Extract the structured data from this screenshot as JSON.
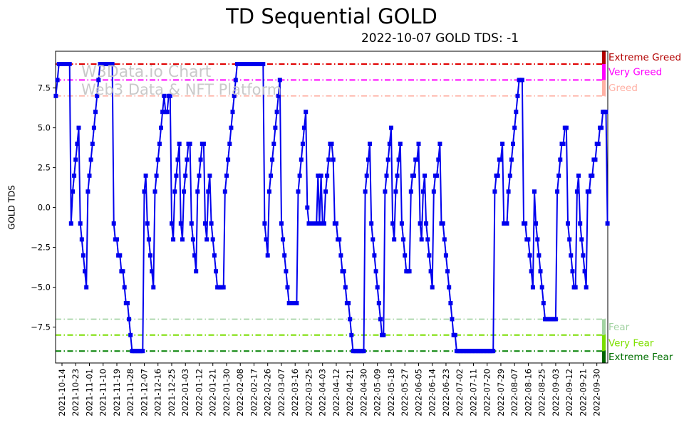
{
  "chart_data": {
    "type": "line",
    "title": "TD Sequential GOLD",
    "subtitle": "2022-10-07 GOLD TDS: -1",
    "ylabel": "GOLD TDS",
    "series_name": "GOLD TDS",
    "line_color": "#0000ee",
    "marker": "square",
    "grid": false,
    "ylim": [
      -9.8,
      9.8
    ],
    "start_date": "2021-10-10",
    "watermark": [
      "W3Data.io Chart",
      "Web3 Data & NFT Platform"
    ],
    "y_tick_labels": [
      "7.5",
      "5.0",
      "2.5",
      "0.0",
      "−2.5",
      "−5.0",
      "−7.5"
    ],
    "y_tick_values": [
      7.5,
      5.0,
      2.5,
      0.0,
      -2.5,
      -5.0,
      -7.5
    ],
    "x_tick_labels": [
      "2021-10-14",
      "2021-10-23",
      "2021-11-01",
      "2021-11-10",
      "2021-11-19",
      "2021-11-28",
      "2021-12-07",
      "2021-12-16",
      "2021-12-25",
      "2022-01-03",
      "2022-01-12",
      "2022-01-21",
      "2022-01-30",
      "2022-02-08",
      "2022-02-17",
      "2022-02-26",
      "2022-03-07",
      "2022-03-16",
      "2022-03-25",
      "2022-04-03",
      "2022-04-12",
      "2022-04-21",
      "2022-04-30",
      "2022-05-09",
      "2022-05-18",
      "2022-05-27",
      "2022-06-05",
      "2022-06-14",
      "2022-06-23",
      "2022-07-02",
      "2022-07-11",
      "2022-07-20",
      "2022-07-29",
      "2022-08-07",
      "2022-08-16",
      "2022-08-25",
      "2022-09-03",
      "2022-09-12",
      "2022-09-21",
      "2022-09-30"
    ],
    "x_tick_first_index": 4,
    "x_tick_step_days": 9,
    "levels": [
      {
        "label": "Extreme Greed",
        "value": 9,
        "line_color": "#e00000",
        "text_color": "#b30000",
        "bar_color": "#b30000"
      },
      {
        "label": "Very Greed",
        "value": 8,
        "line_color": "#ff00ff",
        "text_color": "#ff00ff",
        "bar_color": "#ff00ff"
      },
      {
        "label": "Greed",
        "value": 7,
        "line_color": "#ffb0a4",
        "text_color": "#ffb0a4",
        "bar_color": "#ffb0a4"
      },
      {
        "label": "Fear",
        "value": -7,
        "line_color": "#a3d3a3",
        "text_color": "#a3d3a3",
        "bar_color": "#a3d3a3"
      },
      {
        "label": "Very Fear",
        "value": -8,
        "line_color": "#79dd00",
        "text_color": "#7fe000",
        "bar_color": "#79dd00"
      },
      {
        "label": "Extreme Fear",
        "value": -9,
        "line_color": "#008000",
        "text_color": "#007000",
        "bar_color": "#006400"
      }
    ],
    "values": [
      7,
      8,
      9,
      9,
      9,
      9,
      9,
      9,
      9,
      9,
      -1,
      1,
      2,
      3,
      4,
      5,
      -1,
      -2,
      -3,
      -4,
      -5,
      1,
      2,
      3,
      4,
      5,
      6,
      7,
      8,
      9,
      9,
      9,
      9,
      9,
      9,
      9,
      9,
      9,
      -1,
      -2,
      -2,
      -3,
      -3,
      -4,
      -4,
      -5,
      -6,
      -6,
      -7,
      -8,
      -9,
      -9,
      -9,
      -9,
      -9,
      -9,
      -9,
      -9,
      1,
      2,
      -1,
      -2,
      -3,
      -4,
      -5,
      1,
      2,
      3,
      4,
      5,
      6,
      7,
      6,
      6,
      7,
      7,
      -1,
      -2,
      1,
      2,
      3,
      4,
      -1,
      -2,
      1,
      2,
      3,
      4,
      4,
      -1,
      -2,
      -3,
      -4,
      1,
      2,
      3,
      4,
      4,
      -1,
      -2,
      1,
      2,
      -1,
      -2,
      -3,
      -4,
      -5,
      -5,
      -5,
      -5,
      -5,
      1,
      2,
      3,
      4,
      5,
      6,
      7,
      8,
      9,
      9,
      9,
      9,
      9,
      9,
      9,
      9,
      9,
      9,
      9,
      9,
      9,
      9,
      9,
      9,
      9,
      9,
      -1,
      -2,
      -3,
      1,
      2,
      3,
      4,
      5,
      6,
      7,
      8,
      -1,
      -2,
      -3,
      -4,
      -5,
      -6,
      -6,
      -6,
      -6,
      -6,
      -6,
      1,
      2,
      3,
      4,
      5,
      6,
      0,
      -1,
      -1,
      -1,
      -1,
      -1,
      -1,
      2,
      -1,
      2,
      -1,
      -1,
      1,
      2,
      3,
      4,
      4,
      3,
      -1,
      -1,
      -2,
      -2,
      -3,
      -4,
      -4,
      -5,
      -6,
      -6,
      -7,
      -8,
      -9,
      -9,
      -9,
      -9,
      -9,
      -9,
      -9,
      -9,
      1,
      2,
      3,
      4,
      -1,
      -2,
      -3,
      -4,
      -5,
      -6,
      -7,
      -8,
      -8,
      1,
      2,
      3,
      4,
      5,
      -1,
      -2,
      1,
      2,
      3,
      4,
      -1,
      -2,
      -3,
      -4,
      -4,
      -4,
      1,
      2,
      2,
      3,
      3,
      4,
      -1,
      -2,
      1,
      2,
      -1,
      -2,
      -3,
      -4,
      -5,
      1,
      2,
      2,
      3,
      4,
      -1,
      -1,
      -2,
      -3,
      -4,
      -5,
      -6,
      -7,
      -8,
      -8,
      -9,
      -9,
      -9,
      -9,
      -9,
      -9,
      -9,
      -9,
      -9,
      -9,
      -9,
      -9,
      -9,
      -9,
      -9,
      -9,
      -9,
      -9,
      -9,
      -9,
      -9,
      -9,
      -9,
      -9,
      -9,
      1,
      2,
      2,
      3,
      3,
      4,
      -1,
      -1,
      -1,
      1,
      2,
      3,
      4,
      5,
      6,
      7,
      8,
      8,
      8,
      -1,
      -1,
      -2,
      -2,
      -3,
      -4,
      -5,
      1,
      -1,
      -2,
      -3,
      -4,
      -5,
      -6,
      -7,
      -7,
      -7,
      -7,
      -7,
      -7,
      -7,
      -7,
      1,
      2,
      3,
      4,
      4,
      5,
      5,
      -1,
      -2,
      -3,
      -4,
      -5,
      -5,
      1,
      2,
      -1,
      -2,
      -3,
      -4,
      -5,
      1,
      1,
      2,
      2,
      3,
      3,
      4,
      4,
      5,
      5,
      6,
      6,
      6,
      -1
    ]
  }
}
